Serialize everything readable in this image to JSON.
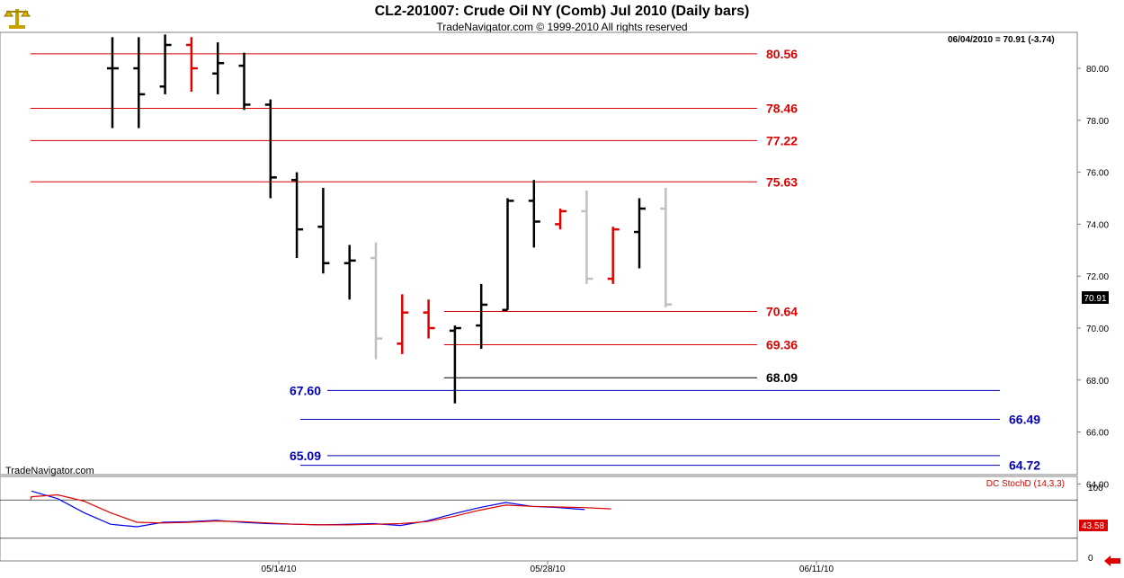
{
  "header": {
    "title": "CL2-201007:  Crude Oil NY (Comb) Jul 2010  (Daily bars)",
    "subtitle": "TradeNavigator.com © 1999-2010 All rights reserved"
  },
  "status": {
    "last_quote": "06/04/2010 = 70.91 (-3.74)",
    "price_label": "70.91",
    "watermark": "TradeNavigator.com"
  },
  "icons": {
    "logo": "scale-icon",
    "nav": "left-arrow-icon"
  },
  "colors": {
    "bar_up": "#000000",
    "bar_down": "#e00000",
    "bar_other": "#c0c0c0",
    "level_red": "#dd0000",
    "level_blue": "#0000bb",
    "stoch_k": "#0000ff",
    "stoch_d": "#dd0000",
    "axis": "#808080"
  },
  "chart_data": [
    {
      "type": "ohlc",
      "ylim": [
        63.6,
        81.6
      ],
      "yticks": [
        "80.00",
        "78.00",
        "76.00",
        "74.00",
        "72.00",
        "70.00",
        "68.00",
        "66.00",
        "64.00"
      ],
      "xticks": [
        "05/14/10",
        "05/28/10",
        "06/11/10"
      ],
      "bars": [
        {
          "o": 80.0,
          "h": 81.2,
          "l": 77.7,
          "c": 80.0,
          "color": "up"
        },
        {
          "o": 80.0,
          "h": 81.2,
          "l": 77.7,
          "c": 79.0,
          "color": "up"
        },
        {
          "o": 79.3,
          "h": 81.3,
          "l": 79.0,
          "c": 80.9,
          "color": "up"
        },
        {
          "o": 80.9,
          "h": 81.2,
          "l": 79.1,
          "c": 80.0,
          "color": "down"
        },
        {
          "o": 79.8,
          "h": 81.0,
          "l": 79.0,
          "c": 80.2,
          "color": "up"
        },
        {
          "o": 80.1,
          "h": 80.6,
          "l": 78.4,
          "c": 78.6,
          "color": "up"
        },
        {
          "o": 78.6,
          "h": 78.8,
          "l": 75.0,
          "c": 75.8,
          "color": "up"
        },
        {
          "o": 75.7,
          "h": 76.0,
          "l": 72.7,
          "c": 73.8,
          "color": "up"
        },
        {
          "o": 73.9,
          "h": 75.4,
          "l": 72.1,
          "c": 72.5,
          "color": "up"
        },
        {
          "o": 72.5,
          "h": 73.2,
          "l": 71.1,
          "c": 72.6,
          "color": "up"
        },
        {
          "o": 72.7,
          "h": 73.3,
          "l": 68.8,
          "c": 69.6,
          "color": "other"
        },
        {
          "o": 69.4,
          "h": 71.3,
          "l": 69.0,
          "c": 70.6,
          "color": "down"
        },
        {
          "o": 70.6,
          "h": 71.1,
          "l": 69.6,
          "c": 70.0,
          "color": "down"
        },
        {
          "o": 69.9,
          "h": 70.1,
          "l": 67.1,
          "c": 70.0,
          "color": "up"
        },
        {
          "o": 70.1,
          "h": 71.7,
          "l": 69.2,
          "c": 70.9,
          "color": "up"
        },
        {
          "o": 70.7,
          "h": 75.0,
          "l": 70.7,
          "c": 74.9,
          "color": "up"
        },
        {
          "o": 74.9,
          "h": 75.7,
          "l": 73.1,
          "c": 74.1,
          "color": "up"
        },
        {
          "o": 74.0,
          "h": 74.6,
          "l": 73.8,
          "c": 74.5,
          "color": "down"
        },
        {
          "o": 74.5,
          "h": 75.3,
          "l": 71.7,
          "c": 71.9,
          "color": "other"
        },
        {
          "o": 71.9,
          "h": 73.9,
          "l": 71.7,
          "c": 73.8,
          "color": "down"
        },
        {
          "o": 73.7,
          "h": 75.0,
          "l": 72.3,
          "c": 74.6,
          "color": "up"
        },
        {
          "o": 74.6,
          "h": 75.4,
          "l": 70.8,
          "c": 70.91,
          "color": "other"
        }
      ],
      "levels": [
        {
          "value": 80.56,
          "label": "80.56",
          "color": "red",
          "from_bar": 0,
          "to_bar": 24,
          "label_side": "right"
        },
        {
          "value": 78.46,
          "label": "78.46",
          "color": "red",
          "from_bar": 0,
          "to_bar": 24,
          "label_side": "right"
        },
        {
          "value": 77.22,
          "label": "77.22",
          "color": "red",
          "from_bar": 0,
          "to_bar": 24,
          "label_side": "right"
        },
        {
          "value": 75.63,
          "label": "75.63",
          "color": "red",
          "from_bar": 0,
          "to_bar": 24,
          "label_side": "right"
        },
        {
          "value": 70.64,
          "label": "70.64",
          "color": "red",
          "from_bar": 13,
          "to_bar": 24,
          "label_side": "right"
        },
        {
          "value": 69.36,
          "label": "69.36",
          "color": "red",
          "from_bar": 13,
          "to_bar": 24,
          "label_side": "right"
        },
        {
          "value": 68.09,
          "label": "68.09",
          "color": "black",
          "from_bar": 13,
          "to_bar": 24,
          "label_side": "right"
        },
        {
          "value": 67.6,
          "label": "67.60",
          "color": "blue",
          "from_bar": 8,
          "to_bar": 33,
          "label_side": "left"
        },
        {
          "value": 66.49,
          "label": "66.49",
          "color": "blue",
          "from_bar": 8,
          "to_bar": 33,
          "label_side": "right"
        },
        {
          "value": 65.09,
          "label": "65.09",
          "color": "blue",
          "from_bar": 8,
          "to_bar": 33,
          "label_side": "left"
        },
        {
          "value": 64.72,
          "label": "64.72",
          "color": "blue",
          "from_bar": 8,
          "to_bar": 33,
          "label_side": "right"
        }
      ]
    },
    {
      "type": "line",
      "title": "DC StochD (14,3,3)",
      "ylim": [
        0,
        100
      ],
      "yticks": [
        "100",
        "43.58",
        "0"
      ],
      "levels": [
        80,
        20
      ],
      "series": [
        {
          "name": "K",
          "color": "blue",
          "x": [
            0,
            1,
            2,
            3,
            4,
            5,
            6,
            7,
            8,
            9,
            10,
            11,
            12,
            13,
            14,
            15,
            16,
            17,
            18,
            19,
            20,
            21
          ],
          "values": [
            94,
            82,
            60,
            42,
            38,
            45,
            46,
            48,
            45,
            43,
            42,
            41,
            42,
            43,
            40,
            47,
            58,
            68,
            76,
            70,
            68,
            65
          ]
        },
        {
          "name": "D",
          "color": "red",
          "x": [
            -1,
            0,
            1,
            2,
            3,
            4,
            5,
            6,
            7,
            8,
            9,
            10,
            11,
            12,
            13,
            14,
            15,
            16,
            17,
            18,
            19,
            20,
            21,
            22
          ],
          "values": [
            81,
            85,
            88,
            78,
            60,
            45,
            44,
            45,
            47,
            46,
            44,
            42,
            41,
            41,
            42,
            43,
            46,
            54,
            64,
            72,
            70,
            69,
            68,
            66
          ]
        }
      ]
    }
  ]
}
